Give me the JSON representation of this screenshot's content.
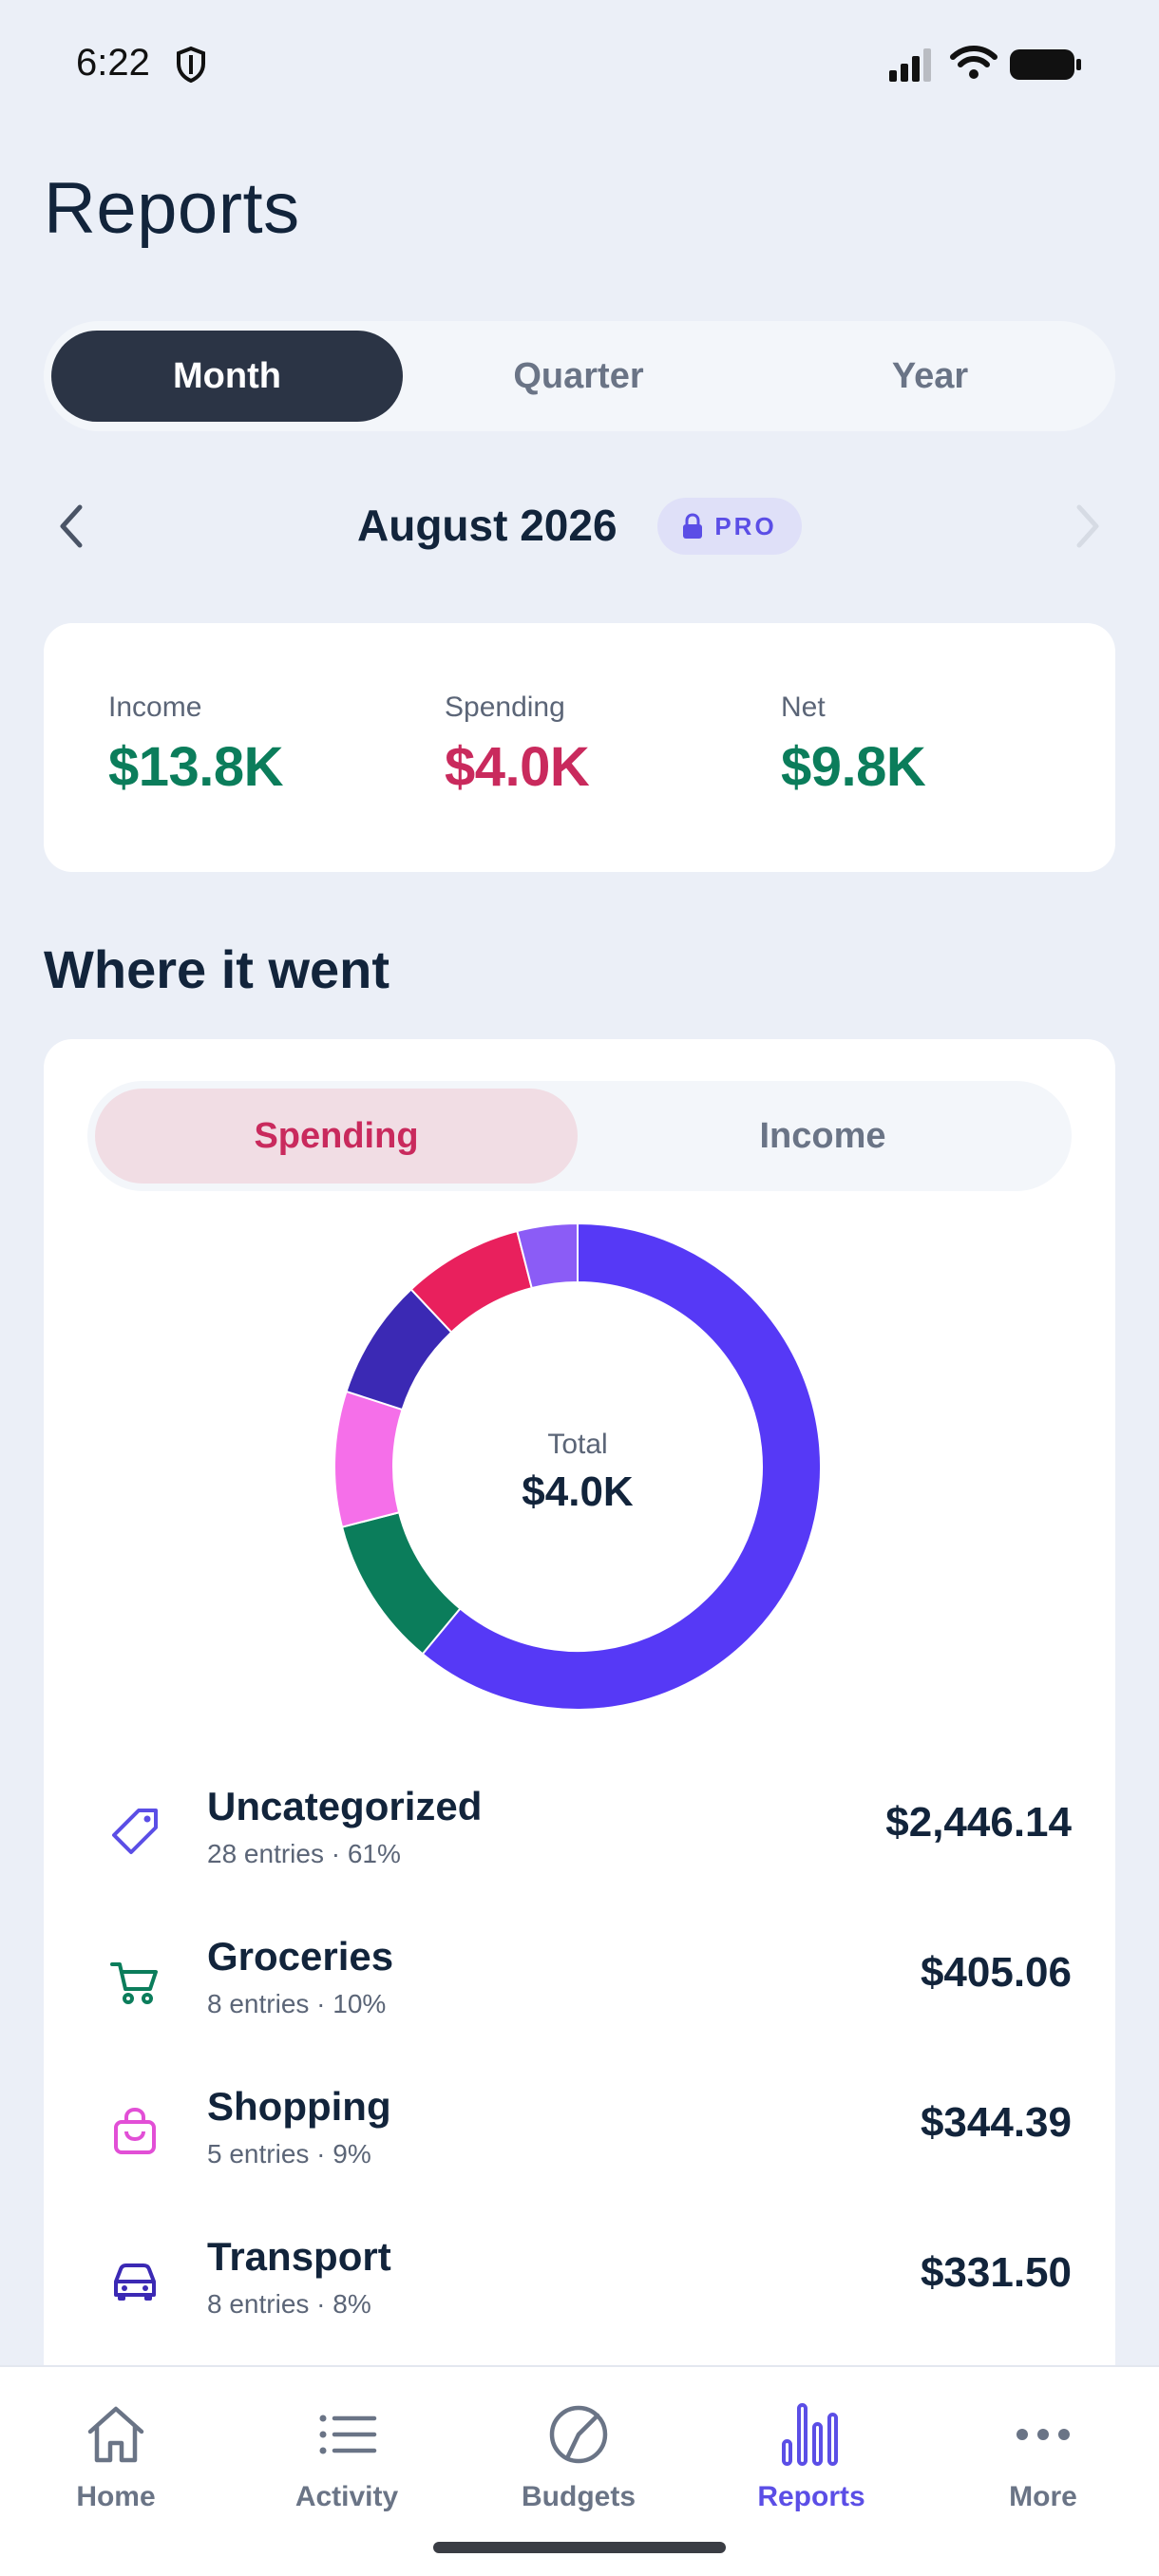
{
  "status": {
    "time": "6:22"
  },
  "page": {
    "title": "Reports"
  },
  "period_tabs": [
    "Month",
    "Quarter",
    "Year"
  ],
  "period_selected": "Month",
  "month": {
    "label": "August 2026",
    "badge": "PRO"
  },
  "summary": {
    "income_label": "Income",
    "income_value": "$13.8K",
    "spending_label": "Spending",
    "spending_value": "$4.0K",
    "net_label": "Net",
    "net_value": "$9.8K"
  },
  "section": {
    "title": "Where it went"
  },
  "breakdown_tabs": [
    "Spending",
    "Income"
  ],
  "breakdown_selected": "Spending",
  "donut": {
    "center_label": "Total",
    "center_value": "$4.0K",
    "segments": [
      {
        "name": "Uncategorized",
        "percent": 61,
        "color": "#5639f6"
      },
      {
        "name": "Groceries",
        "percent": 10,
        "color": "#0b7d5b"
      },
      {
        "name": "Shopping",
        "percent": 9,
        "color": "#f56fe9"
      },
      {
        "name": "Transport",
        "percent": 8,
        "color": "#3b29b4"
      },
      {
        "name": "Other red",
        "percent": 8,
        "color": "#e9205d"
      },
      {
        "name": "Other purple",
        "percent": 4,
        "color": "#8b5cf6"
      }
    ]
  },
  "categories": [
    {
      "name": "Uncategorized",
      "sub": "28 entries · 61%",
      "amount": "$2,446.14",
      "icon": "tag-icon",
      "color": "#5b4ee6"
    },
    {
      "name": "Groceries",
      "sub": "8 entries · 10%",
      "amount": "$405.06",
      "icon": "cart-icon",
      "color": "#0b7d5b"
    },
    {
      "name": "Shopping",
      "sub": "5 entries · 9%",
      "amount": "$344.39",
      "icon": "bag-icon",
      "color": "#e24fd6"
    },
    {
      "name": "Transport",
      "sub": "8 entries · 8%",
      "amount": "$331.50",
      "icon": "car-icon",
      "color": "#3b29b4"
    }
  ],
  "tabbar": {
    "home": "Home",
    "activity": "Activity",
    "budgets": "Budgets",
    "reports": "Reports",
    "more": "More",
    "active": "Reports",
    "active_color": "#5b4ee6",
    "inactive_color": "#6a7486"
  },
  "colors": {
    "income": "#0b7d5b",
    "spending": "#c92a5d",
    "net": "#0b7d5b",
    "accent": "#5b4ee6"
  }
}
